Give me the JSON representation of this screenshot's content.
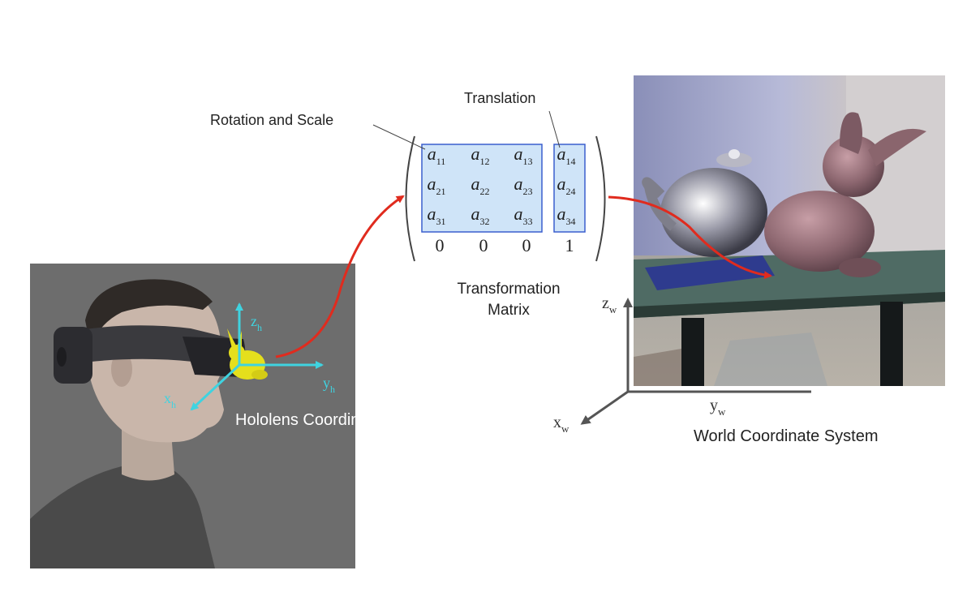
{
  "labels": {
    "rotation_scale": "Rotation and Scale",
    "translation": "Translation",
    "transformation_line1": "Transformation",
    "transformation_line2": "Matrix",
    "hololens_system": "Hololens Coordinate System",
    "world_system": "World Coordinate System"
  },
  "hololens_axes": {
    "z": "z",
    "z_sub": "h",
    "y": "y",
    "y_sub": "h",
    "x": "x",
    "x_sub": "h",
    "color": "#3fd3e0"
  },
  "world_axes": {
    "z": "z",
    "z_sub": "w",
    "y": "y",
    "y_sub": "w",
    "x": "x",
    "x_sub": "w",
    "color": "#555555"
  },
  "matrix": {
    "symbol": "a",
    "rotation_scale_subs": [
      [
        "11",
        "12",
        "13"
      ],
      [
        "21",
        "22",
        "23"
      ],
      [
        "31",
        "32",
        "33"
      ]
    ],
    "translation_subs": [
      "14",
      "24",
      "34"
    ],
    "bottom_row": [
      "0",
      "0",
      "0",
      "1"
    ],
    "highlight_fill": "#cfe4f8",
    "highlight_stroke": "#3a5fcd"
  },
  "arrow_color": "#e02b1e"
}
